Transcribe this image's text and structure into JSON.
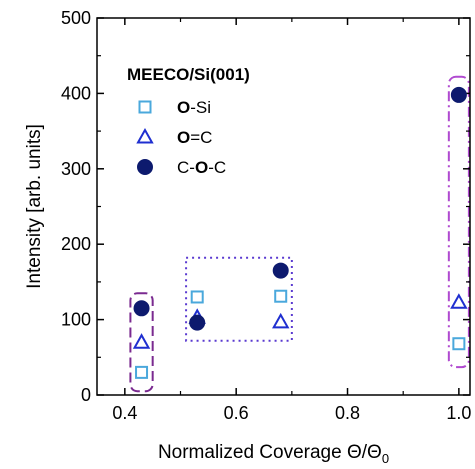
{
  "chart_data": {
    "type": "scatter",
    "xlabel": "Normalized Coverage Θ/Θ",
    "xlabel_subscript": "0",
    "ylabel": "Intensity [arb. units]",
    "xlim": [
      0.35,
      1.02
    ],
    "ylim": [
      0,
      500
    ],
    "xticks": [
      0.4,
      0.6,
      0.8,
      1.0
    ],
    "xtick_labels": [
      "0.4",
      "0.6",
      "0.8",
      "1.0"
    ],
    "yticks": [
      0,
      100,
      200,
      300,
      400,
      500
    ],
    "ytick_labels": [
      "0",
      "100",
      "200",
      "300",
      "400",
      "500"
    ],
    "grid": false,
    "legend_title": "MEECO/Si(001)",
    "legend_placement": "top-left",
    "series": [
      {
        "name": "O-Si",
        "label_parts": [
          {
            "text": "O",
            "bold": true
          },
          {
            "text": "-Si",
            "bold": false
          }
        ],
        "marker": "open-square",
        "color": "#4aa8dc",
        "x": [
          0.43,
          0.53,
          0.68,
          1.0
        ],
        "y": [
          30,
          130,
          131,
          68
        ]
      },
      {
        "name": "O=C",
        "label_parts": [
          {
            "text": "O",
            "bold": true
          },
          {
            "text": "=C",
            "bold": false
          }
        ],
        "marker": "open-triangle",
        "color": "#1f2fd0",
        "x": [
          0.43,
          0.53,
          0.68,
          1.0
        ],
        "y": [
          70,
          103,
          97,
          123
        ]
      },
      {
        "name": "C-O-C",
        "label_parts": [
          {
            "text": "C-",
            "bold": false
          },
          {
            "text": "O",
            "bold": true
          },
          {
            "text": "-C",
            "bold": false
          }
        ],
        "marker": "filled-circle",
        "color": "#0d1a6e",
        "x": [
          0.43,
          0.53,
          0.68,
          1.0
        ],
        "y": [
          115,
          96,
          165,
          398
        ]
      }
    ],
    "annotations": [
      {
        "shape": "rounded-rect",
        "style": "dashed",
        "color": "#7a2a90",
        "x": [
          0.41,
          0.45
        ],
        "y": [
          5,
          135
        ]
      },
      {
        "shape": "rect",
        "style": "dotted",
        "color": "#5a3ad0",
        "x": [
          0.51,
          0.7
        ],
        "y": [
          72,
          182
        ]
      },
      {
        "shape": "rounded-rect",
        "style": "dash-dot",
        "color": "#b04ad0",
        "x": [
          0.982,
          1.018
        ],
        "y": [
          37,
          422
        ]
      }
    ]
  }
}
